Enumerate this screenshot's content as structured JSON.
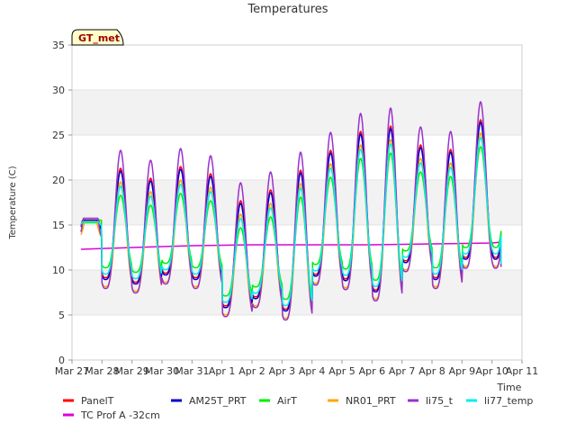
{
  "chart_data": {
    "type": "line",
    "title": "Temperatures",
    "xlabel": "Time",
    "ylabel": "Temperature (C)",
    "ylim": [
      0,
      35
    ],
    "yticks": [
      0,
      5,
      10,
      15,
      20,
      25,
      30,
      35
    ],
    "xlim": [
      0,
      15
    ],
    "xtick_values": [
      0,
      1,
      2,
      3,
      4,
      5,
      6,
      7,
      8,
      9,
      10,
      11,
      12,
      13,
      14,
      15
    ],
    "xtick_labels": [
      "Mar 27",
      "Mar 28",
      "Mar 29",
      "Mar 30",
      "Mar 31",
      "Apr 1",
      "Apr 2",
      "Apr 3",
      "Apr 4",
      "Apr 5",
      "Apr 6",
      "Apr 7",
      "Apr 8",
      "Apr 9",
      "Apr 10",
      "Apr 11"
    ],
    "grid": "horizontal bands",
    "legend_position": "bottom",
    "annotation": "GT_met",
    "daily_extremes": {
      "days": [
        0.3,
        1,
        2,
        3,
        4,
        5,
        6,
        7,
        8,
        9,
        10,
        11,
        12,
        13,
        14
      ],
      "max": [
        15.5,
        22,
        20,
        19.5,
        22,
        19,
        16,
        20,
        21,
        24,
        25.5,
        25.5,
        22,
        23.5,
        28
      ],
      "min": [
        14,
        9,
        8,
        9,
        10,
        5,
        7.5,
        4,
        9,
        9.5,
        6,
        11.5,
        8,
        11,
        11
      ]
    },
    "series": [
      {
        "name": "PanelT",
        "color": "#ff0000",
        "max_offset": 0.5,
        "min_offset": 0.4
      },
      {
        "name": "TC Prof A -32cm",
        "color": "#dd00dd",
        "x": [
          0.3,
          2,
          4,
          6,
          8,
          10,
          12,
          14,
          14.3
        ],
        "values": [
          12.3,
          12.5,
          12.7,
          12.8,
          12.8,
          12.8,
          12.9,
          13.0,
          13.1
        ]
      },
      {
        "name": "AM25T_PRT",
        "color": "#0000cc",
        "max_offset": 0.2,
        "min_offset": 0.2
      },
      {
        "name": "AirT",
        "color": "#00ee00",
        "max_offset": -2.5,
        "min_offset": 1.5
      },
      {
        "name": "NR01_PRT",
        "color": "#ffa500",
        "max_offset": -1.0,
        "min_offset": -0.6
      },
      {
        "name": "li75_t",
        "color": "#9932cc",
        "max_offset": 2.5,
        "min_offset": -0.8
      },
      {
        "name": "li77_temp",
        "color": "#00eeee",
        "max_offset": -1.5,
        "min_offset": 0.8
      }
    ]
  }
}
